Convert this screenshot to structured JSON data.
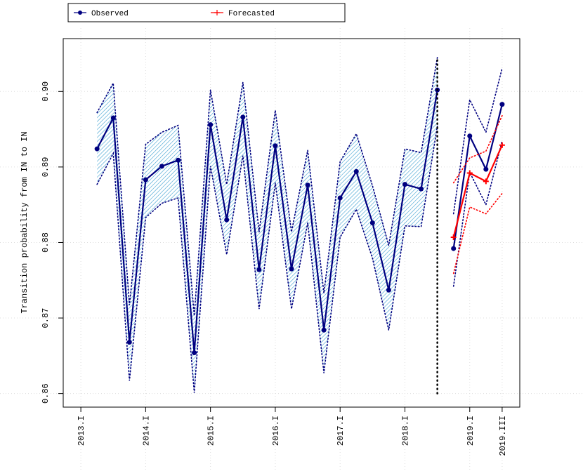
{
  "chart_data": {
    "type": "line",
    "y_label": "Transition probability from IN to IN",
    "xlim": [
      2012.728,
      2019.772
    ],
    "ylim": [
      0.8582,
      0.907
    ],
    "xticks": [
      {
        "value": 2013,
        "label": "2013.I"
      },
      {
        "value": 2014,
        "label": "2014.I"
      },
      {
        "value": 2015,
        "label": "2015.I"
      },
      {
        "value": 2016,
        "label": "2016.I"
      },
      {
        "value": 2017,
        "label": "2017.I"
      },
      {
        "value": 2018,
        "label": "2018.I"
      },
      {
        "value": 2019,
        "label": "2019.I"
      },
      {
        "value": 2019.5,
        "label": "2019.III"
      }
    ],
    "yticks": [
      {
        "value": 0.86,
        "label": "0.86"
      },
      {
        "value": 0.87,
        "label": "0.87"
      },
      {
        "value": 0.88,
        "label": "0.88"
      },
      {
        "value": 0.89,
        "label": "0.89"
      },
      {
        "value": 0.9,
        "label": "0.90"
      }
    ],
    "grid": true,
    "legend": "top-left",
    "vline": {
      "x": 2018.5,
      "y": [
        0.86,
        0.9045
      ]
    },
    "series": [
      {
        "name": "Observed",
        "color": "#000080",
        "marker": "circle",
        "band_color": "#3a9fd0",
        "pieces": [
          {
            "band": true,
            "x": [
              2013.25,
              2013.5,
              2013.75,
              2014,
              2014.25,
              2014.5,
              2014.75,
              2015,
              2015.25,
              2015.5,
              2015.75,
              2016,
              2016.25,
              2016.5,
              2016.75,
              2017,
              2017.25,
              2017.5,
              2017.75,
              2018,
              2018.25,
              2018.5
            ],
            "values": [
              0.8924,
              0.8965,
              0.8668,
              0.8883,
              0.8901,
              0.8909,
              0.8654,
              0.8956,
              0.883,
              0.8966,
              0.8764,
              0.8928,
              0.8765,
              0.8876,
              0.8684,
              0.8859,
              0.8894,
              0.8826,
              0.8737,
              0.8877,
              0.8871,
              0.9002
            ],
            "upper": [
              0.8972,
              0.9011,
              0.8717,
              0.893,
              0.8946,
              0.8955,
              0.8703,
              0.9002,
              0.8877,
              0.9012,
              0.8814,
              0.8975,
              0.8814,
              0.8922,
              0.8733,
              0.8907,
              0.8944,
              0.8875,
              0.8796,
              0.8924,
              0.8919,
              0.9045
            ],
            "lower": [
              0.8877,
              0.8918,
              0.8617,
              0.8833,
              0.8852,
              0.8859,
              0.8601,
              0.8901,
              0.8784,
              0.8915,
              0.8712,
              0.8879,
              0.8712,
              0.8826,
              0.8627,
              0.8807,
              0.8844,
              0.8779,
              0.8684,
              0.8822,
              0.8821,
              0.8954
            ]
          },
          {
            "band": false,
            "x": [
              2018.75,
              2019,
              2019.25,
              2019.5
            ],
            "values": [
              0.8792,
              0.8941,
              0.8897,
              0.8983
            ],
            "upper": [
              0.8838,
              0.8989,
              0.8946,
              0.9031
            ],
            "lower": [
              0.8742,
              0.8893,
              0.885,
              0.8935
            ]
          }
        ]
      },
      {
        "name": "Forecasted",
        "color": "#ff0000",
        "marker": "plus",
        "pieces": [
          {
            "band": false,
            "x": [
              2018.75,
              2019,
              2019.25,
              2019.5
            ],
            "values": [
              0.8807,
              0.8892,
              0.8881,
              0.8929
            ],
            "upper": [
              0.8879,
              0.8912,
              0.8921,
              0.8968
            ],
            "lower": [
              0.8759,
              0.8847,
              0.8838,
              0.8865
            ]
          }
        ]
      }
    ]
  }
}
